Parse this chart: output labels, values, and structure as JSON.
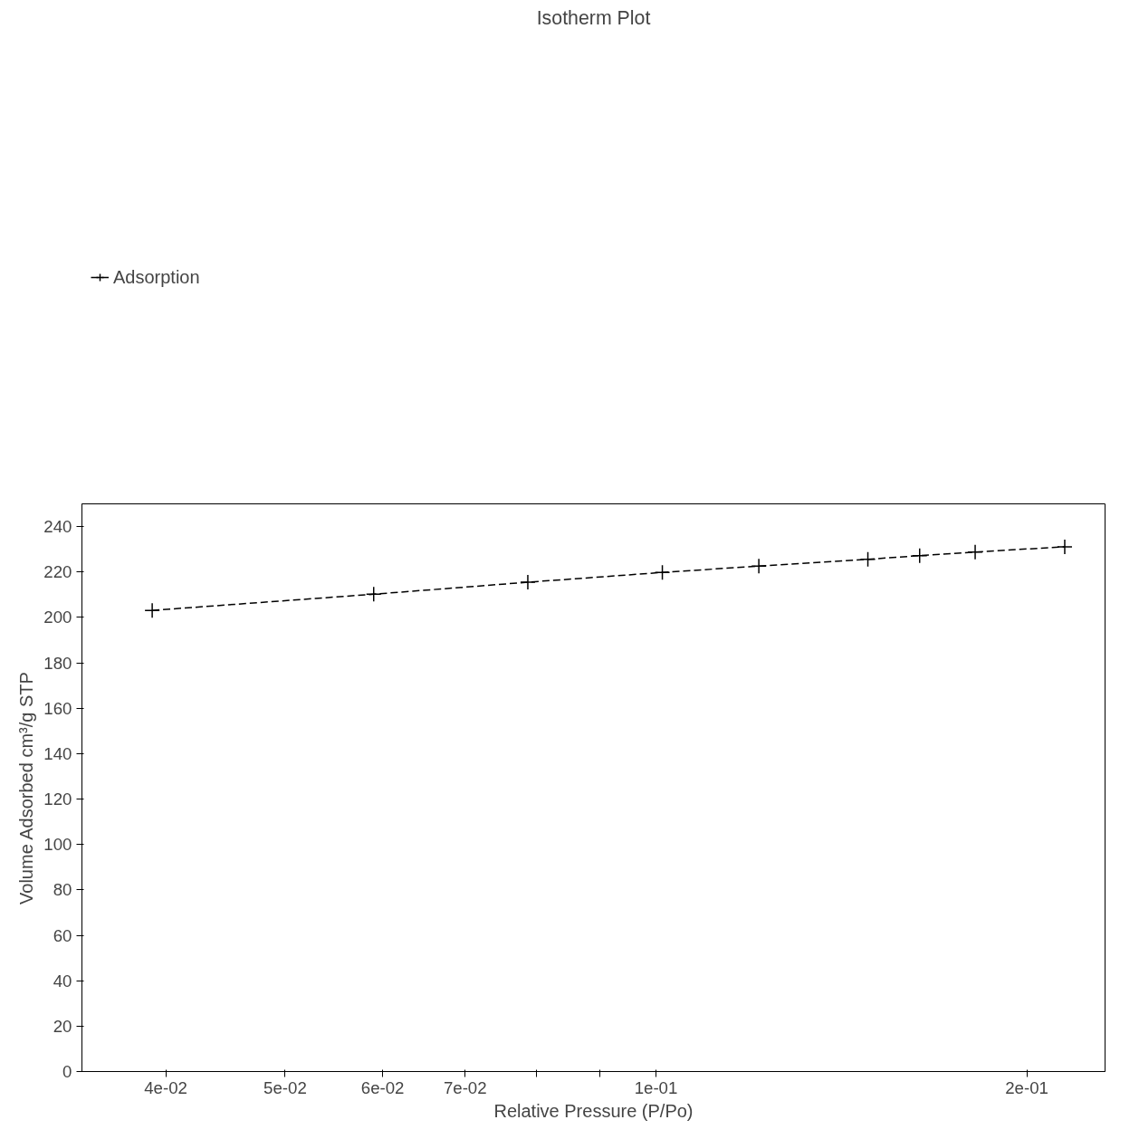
{
  "chart_data": {
    "type": "line",
    "title": "Isotherm Plot",
    "xlabel": "Relative Pressure (P/Po)",
    "ylabel": "Volume Adsorbed cm³/g STP",
    "log": "x",
    "xlim": [
      0.0342,
      0.2315
    ],
    "ylim": [
      0,
      250
    ],
    "xticks": [
      {
        "value": 0.04,
        "label": "4e-02"
      },
      {
        "value": 0.05,
        "label": "5e-02"
      },
      {
        "value": 0.06,
        "label": "6e-02"
      },
      {
        "value": 0.07,
        "label": "7e-02"
      },
      {
        "value": 0.08,
        "label": null
      },
      {
        "value": 0.09,
        "label": null
      },
      {
        "value": 0.1,
        "label": "1e-01"
      },
      {
        "value": 0.2,
        "label": "2e-01"
      }
    ],
    "yticks": [
      0,
      20,
      40,
      60,
      80,
      100,
      120,
      140,
      160,
      180,
      200,
      220,
      240
    ],
    "grid": false,
    "legend": "top left",
    "marker": "cross",
    "line_style": "dashed",
    "x": [
      0.039,
      0.059,
      0.0787,
      0.1012,
      0.1212,
      0.1486,
      0.1637,
      0.1816,
      0.2147
    ],
    "series": [
      {
        "name": "Adsorption",
        "color": "#000000",
        "values": [
          203.1,
          210.2,
          215.5,
          219.8,
          222.6,
          225.6,
          227.2,
          228.8,
          231.1
        ]
      }
    ]
  }
}
